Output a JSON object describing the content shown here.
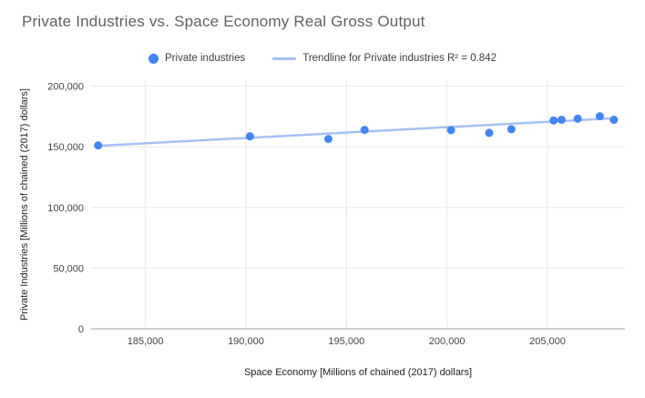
{
  "title": "Private Industries vs. Space Economy Real Gross Output",
  "legend": {
    "series_label": "Private industries",
    "trendline_label": "Trendline for Private industries R² = 0.842"
  },
  "colors": {
    "point": "#4285f4",
    "trendline": "#a4c2f4",
    "grid": "#e8e8e8",
    "axis_line": "#9e9e9e",
    "title_text": "#616161",
    "tick_text": "#444444",
    "axis_title_text": "#222222"
  },
  "chart_data": {
    "type": "scatter",
    "title": "Private Industries vs. Space Economy Real Gross Output",
    "xlabel": "Space Economy [Millions of chained (2017) dollars]",
    "ylabel": "Private Industries [Millions of chained (2017) dollars]",
    "xlim": [
      182300,
      208850
    ],
    "ylim": [
      0,
      205000
    ],
    "xticks": [
      185000,
      190000,
      195000,
      200000,
      205000
    ],
    "yticks": [
      0,
      50000,
      100000,
      150000,
      200000
    ],
    "grid": true,
    "legend_position": "top",
    "series": [
      {
        "name": "Private industries",
        "points": [
          [
            182650,
            151200
          ],
          [
            190200,
            158700
          ],
          [
            194100,
            156500
          ],
          [
            195900,
            164000
          ],
          [
            200200,
            163800
          ],
          [
            202100,
            161500
          ],
          [
            203200,
            164500
          ],
          [
            205300,
            171800
          ],
          [
            205700,
            172300
          ],
          [
            206500,
            173200
          ],
          [
            207600,
            175200
          ],
          [
            208300,
            172300
          ]
        ]
      }
    ],
    "trendline": {
      "name": "Trendline for Private industries",
      "r2": 0.842,
      "x": [
        182650,
        208300
      ],
      "y": [
        150800,
        173600
      ]
    }
  }
}
